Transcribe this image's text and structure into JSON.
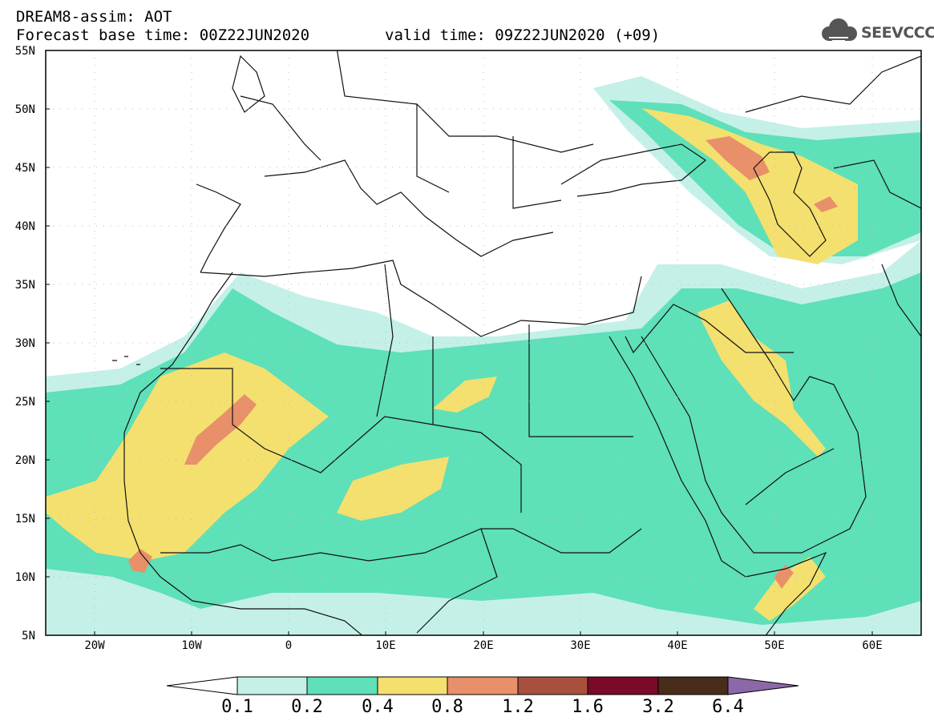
{
  "header": {
    "title": "DREAM8-assim: AOT",
    "base_time": "Forecast base time: 00Z22JUN2020",
    "valid_time": "valid time: 09Z22JUN2020 (+09)"
  },
  "logo": {
    "text": "SEEVCCC",
    "icon": "cloud-icon"
  },
  "map": {
    "variable": "AOT",
    "extent": {
      "lon": [
        -25,
        65
      ],
      "lat": [
        5,
        55
      ]
    },
    "lat_ticks": [
      "55N",
      "50N",
      "45N",
      "40N",
      "35N",
      "30N",
      "25N",
      "20N",
      "15N",
      "10N",
      "5N"
    ],
    "lon_ticks": [
      "20W",
      "10W",
      "0",
      "10E",
      "20E",
      "30E",
      "40E",
      "50E",
      "60E"
    ],
    "grid": "dotted"
  },
  "colorbar": {
    "levels": [
      "0.1",
      "0.2",
      "0.4",
      "0.8",
      "1.2",
      "1.6",
      "3.2",
      "6.4"
    ],
    "colors": [
      "#c4f0e8",
      "#5ee0b8",
      "#f4e06e",
      "#e8906a",
      "#a8503e",
      "#7a0a28",
      "#4a2c1a",
      "#8c68a8"
    ]
  }
}
